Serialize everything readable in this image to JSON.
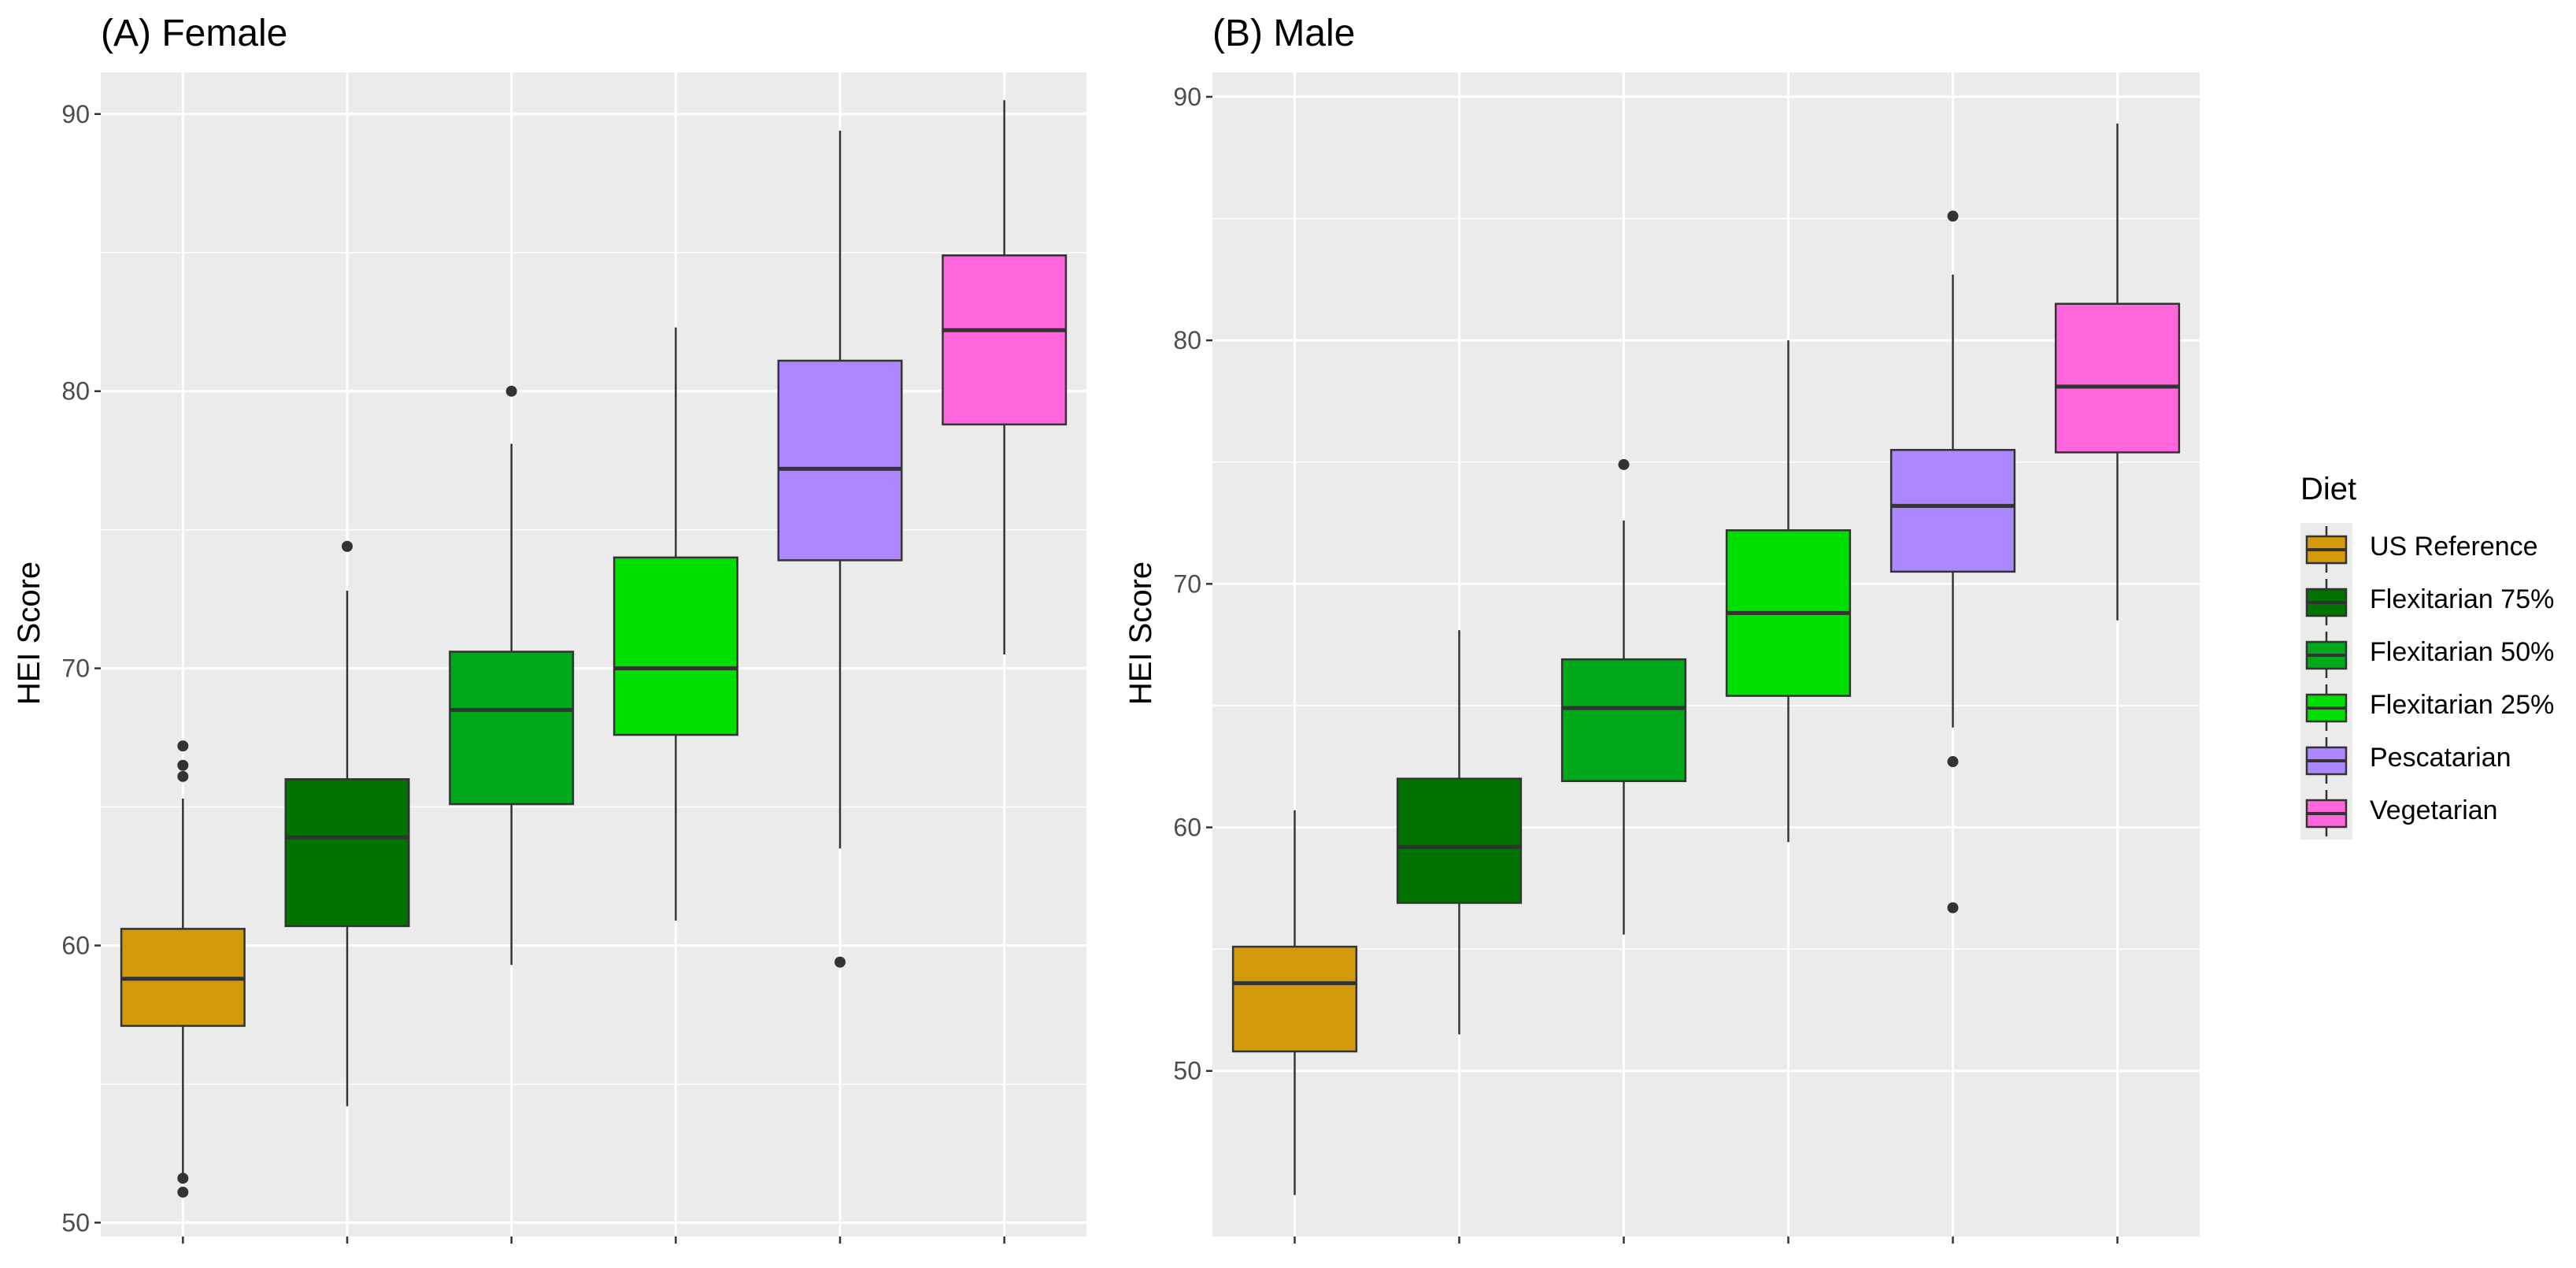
{
  "legend": {
    "title": "Diet",
    "items": [
      {
        "label": "US Reference",
        "color": "#D4990A"
      },
      {
        "label": "Flexitarian 75%",
        "color": "#007300"
      },
      {
        "label": "Flexitarian 50%",
        "color": "#00A81C"
      },
      {
        "label": "Flexitarian 25%",
        "color": "#00E000"
      },
      {
        "label": "Pescatarian",
        "color": "#AD87FF"
      },
      {
        "label": "Vegetarian",
        "color": "#FF66DB"
      }
    ]
  },
  "chart_data": [
    {
      "type": "boxplot",
      "title": "(A) Female",
      "xlabel": "",
      "ylabel": "HEI Score",
      "ylim": [
        49.5,
        91.5
      ],
      "yticks": [
        50,
        60,
        70,
        80,
        90
      ],
      "grid": true,
      "series": [
        {
          "name": "US Reference",
          "min": 51.7,
          "q1": 57.1,
          "median": 58.8,
          "q3": 60.6,
          "max": 65.3,
          "outliers": [
            67.2,
            66.5,
            66.1,
            51.6,
            51.1
          ]
        },
        {
          "name": "Flexitarian 75%",
          "min": 54.2,
          "q1": 60.7,
          "median": 63.9,
          "q3": 66.0,
          "max": 72.8,
          "outliers": [
            74.4
          ]
        },
        {
          "name": "Flexitarian 50%",
          "min": 59.3,
          "q1": 65.1,
          "median": 68.5,
          "q3": 70.6,
          "max": 78.1,
          "outliers": [
            80.0
          ]
        },
        {
          "name": "Flexitarian 25%",
          "min": 60.9,
          "q1": 67.6,
          "median": 70.0,
          "q3": 74.0,
          "max": 82.3,
          "outliers": []
        },
        {
          "name": "Pescatarian",
          "min": 63.5,
          "q1": 73.9,
          "median": 77.2,
          "q3": 81.1,
          "max": 89.4,
          "outliers": [
            59.4
          ]
        },
        {
          "name": "Vegetarian",
          "min": 70.5,
          "q1": 78.8,
          "median": 82.2,
          "q3": 84.9,
          "max": 90.5,
          "outliers": []
        }
      ]
    },
    {
      "type": "boxplot",
      "title": "(B) Male",
      "xlabel": "",
      "ylabel": "HEI Score",
      "ylim": [
        43.2,
        91.0
      ],
      "yticks": [
        50,
        60,
        70,
        80,
        90
      ],
      "grid": true,
      "series": [
        {
          "name": "US Reference",
          "min": 44.9,
          "q1": 50.8,
          "median": 53.6,
          "q3": 55.1,
          "max": 60.7,
          "outliers": []
        },
        {
          "name": "Flexitarian 75%",
          "min": 51.5,
          "q1": 56.9,
          "median": 59.2,
          "q3": 62.0,
          "max": 68.1,
          "outliers": []
        },
        {
          "name": "Flexitarian 50%",
          "min": 55.6,
          "q1": 61.9,
          "median": 64.9,
          "q3": 66.9,
          "max": 72.6,
          "outliers": [
            74.9
          ]
        },
        {
          "name": "Flexitarian 25%",
          "min": 59.4,
          "q1": 65.4,
          "median": 68.8,
          "q3": 72.2,
          "max": 80.0,
          "outliers": []
        },
        {
          "name": "Pescatarian",
          "min": 64.1,
          "q1": 70.5,
          "median": 73.2,
          "q3": 75.5,
          "max": 82.7,
          "outliers": [
            85.1,
            62.7,
            56.7
          ]
        },
        {
          "name": "Vegetarian",
          "min": 68.5,
          "q1": 75.4,
          "median": 78.1,
          "q3": 81.5,
          "max": 88.9,
          "outliers": []
        }
      ]
    }
  ]
}
